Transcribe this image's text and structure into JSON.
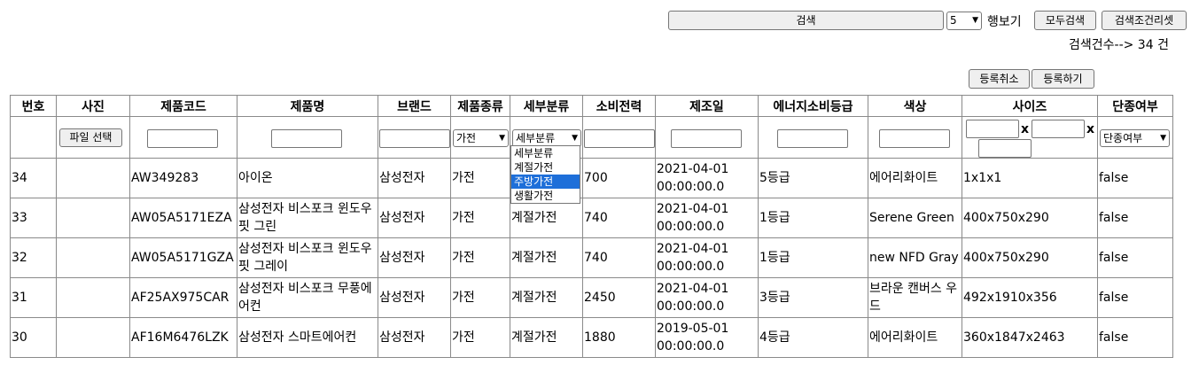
{
  "search": {
    "button_label": "검색",
    "rows_value": "5",
    "rows_label": "행보기",
    "all_search_label": "모두검색",
    "reset_label": "검색조건리셋",
    "count_text": "검색건수--> 34 건"
  },
  "actions": {
    "cancel_label": "등록취소",
    "register_label": "등록하기"
  },
  "table": {
    "headers": [
      "번호",
      "사진",
      "제품코드",
      "제품명",
      "브랜드",
      "제품종류",
      "세부분류",
      "소비전력",
      "제조일",
      "에너지소비등급",
      "색상",
      "사이즈",
      "단종여부"
    ],
    "filters": {
      "file_button": "파일 선택",
      "type_select": "가전",
      "subcat_select": "세부분류",
      "size_x": "x",
      "discontinued_select": "단종여부"
    },
    "rows": [
      {
        "no": "34",
        "photo": "",
        "code": "AW349283",
        "name": "아이온",
        "brand": "삼성전자",
        "type": "가전",
        "subcat": "",
        "power": "700",
        "date": "2021-04-01 00:00:00.0",
        "grade": "5등급",
        "color": "에어리화이트",
        "size": "1x1x1",
        "disc": "false"
      },
      {
        "no": "33",
        "photo": "",
        "code": "AW05A5171EZA",
        "name": "삼성전자 비스포크 윈도우핏 그린",
        "brand": "삼성전자",
        "type": "가전",
        "subcat": "계절가전",
        "power": "740",
        "date": "2021-04-01 00:00:00.0",
        "grade": "1등급",
        "color": "Serene Green",
        "size": "400x750x290",
        "disc": "false"
      },
      {
        "no": "32",
        "photo": "",
        "code": "AW05A5171GZA",
        "name": "삼성전자 비스포크 윈도우핏 그레이",
        "brand": "삼성전자",
        "type": "가전",
        "subcat": "계절가전",
        "power": "740",
        "date": "2021-04-01 00:00:00.0",
        "grade": "1등급",
        "color": "new NFD Gray",
        "size": "400x750x290",
        "disc": "false"
      },
      {
        "no": "31",
        "photo": "",
        "code": "AF25AX975CAR",
        "name": "삼성전자 비스포크 무풍에어컨",
        "brand": "삼성전자",
        "type": "가전",
        "subcat": "계절가전",
        "power": "2450",
        "date": "2021-04-01 00:00:00.0",
        "grade": "3등급",
        "color": "브라운 캔버스 우드",
        "size": "492x1910x356",
        "disc": "false"
      },
      {
        "no": "30",
        "photo": "",
        "code": "AF16M6476LZK",
        "name": "삼성전자 스마트에어컨",
        "brand": "삼성전자",
        "type": "가전",
        "subcat": "계절가전",
        "power": "1880",
        "date": "2019-05-01 00:00:00.0",
        "grade": "4등급",
        "color": "에어리화이트",
        "size": "360x1847x2463",
        "disc": "false"
      }
    ]
  },
  "dropdown": {
    "options": [
      "세부분류",
      "계절가전",
      "주방가전",
      "생활가전"
    ],
    "highlighted": "주방가전"
  }
}
